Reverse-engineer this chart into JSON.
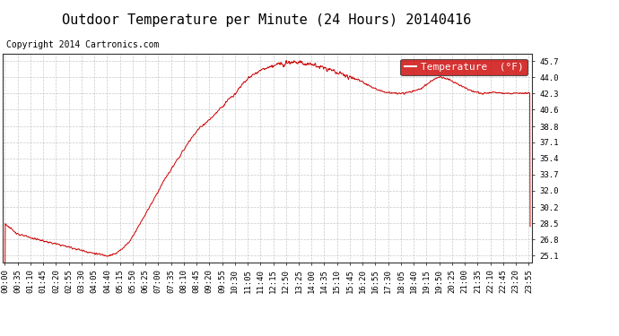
{
  "title": "Outdoor Temperature per Minute (24 Hours) 20140416",
  "copyright": "Copyright 2014 Cartronics.com",
  "legend_label": "Temperature  (°F)",
  "line_color": "#cc0000",
  "legend_bg": "#cc0000",
  "legend_text_color": "#ffffff",
  "background_color": "#ffffff",
  "plot_bg_color": "#ffffff",
  "grid_color": "#bbbbbb",
  "yticks": [
    25.1,
    26.8,
    28.5,
    30.2,
    32.0,
    33.7,
    35.4,
    37.1,
    38.8,
    40.6,
    42.3,
    44.0,
    45.7
  ],
  "ylim": [
    24.4,
    46.5
  ],
  "xtick_labels": [
    "00:00",
    "00:35",
    "01:10",
    "01:45",
    "02:20",
    "02:55",
    "03:30",
    "04:05",
    "04:40",
    "05:15",
    "05:50",
    "06:25",
    "07:00",
    "07:35",
    "08:10",
    "08:45",
    "09:20",
    "09:55",
    "10:30",
    "11:05",
    "11:40",
    "12:15",
    "12:50",
    "13:25",
    "14:00",
    "14:35",
    "15:10",
    "15:45",
    "16:20",
    "16:55",
    "17:30",
    "18:05",
    "18:40",
    "19:15",
    "19:50",
    "20:25",
    "21:00",
    "21:35",
    "22:10",
    "22:45",
    "23:20",
    "23:55"
  ],
  "title_fontsize": 11,
  "copyright_fontsize": 7,
  "tick_fontsize": 6.5,
  "legend_fontsize": 8,
  "waypoints": [
    [
      0,
      28.5
    ],
    [
      20,
      27.8
    ],
    [
      40,
      27.3
    ],
    [
      70,
      27.0
    ],
    [
      90,
      26.8
    ],
    [
      110,
      26.6
    ],
    [
      130,
      26.4
    ],
    [
      155,
      26.2
    ],
    [
      175,
      26.0
    ],
    [
      195,
      25.8
    ],
    [
      215,
      25.6
    ],
    [
      235,
      25.4
    ],
    [
      255,
      25.25
    ],
    [
      270,
      25.15
    ],
    [
      280,
      25.1
    ],
    [
      290,
      25.15
    ],
    [
      305,
      25.3
    ],
    [
      320,
      25.8
    ],
    [
      340,
      26.5
    ],
    [
      360,
      27.8
    ],
    [
      385,
      29.5
    ],
    [
      410,
      31.2
    ],
    [
      435,
      33.0
    ],
    [
      460,
      34.5
    ],
    [
      485,
      36.0
    ],
    [
      510,
      37.5
    ],
    [
      530,
      38.5
    ],
    [
      545,
      39.0
    ],
    [
      560,
      39.5
    ],
    [
      570,
      39.8
    ],
    [
      585,
      40.5
    ],
    [
      600,
      41.0
    ],
    [
      615,
      41.8
    ],
    [
      625,
      42.0
    ],
    [
      635,
      42.5
    ],
    [
      645,
      43.0
    ],
    [
      655,
      43.5
    ],
    [
      665,
      43.8
    ],
    [
      678,
      44.2
    ],
    [
      690,
      44.5
    ],
    [
      700,
      44.7
    ],
    [
      710,
      44.9
    ],
    [
      720,
      45.0
    ],
    [
      730,
      45.1
    ],
    [
      740,
      45.3
    ],
    [
      750,
      45.4
    ],
    [
      760,
      45.5
    ],
    [
      770,
      45.6
    ],
    [
      780,
      45.65
    ],
    [
      790,
      45.7
    ],
    [
      800,
      45.65
    ],
    [
      815,
      45.5
    ],
    [
      830,
      45.4
    ],
    [
      845,
      45.35
    ],
    [
      860,
      45.2
    ],
    [
      875,
      45.0
    ],
    [
      890,
      44.8
    ],
    [
      905,
      44.6
    ],
    [
      920,
      44.4
    ],
    [
      935,
      44.2
    ],
    [
      950,
      44.0
    ],
    [
      965,
      43.8
    ],
    [
      975,
      43.6
    ],
    [
      985,
      43.4
    ],
    [
      995,
      43.2
    ],
    [
      1005,
      43.0
    ],
    [
      1015,
      42.8
    ],
    [
      1025,
      42.6
    ],
    [
      1035,
      42.5
    ],
    [
      1050,
      42.4
    ],
    [
      1065,
      42.3
    ],
    [
      1080,
      42.3
    ],
    [
      1095,
      42.3
    ],
    [
      1105,
      42.4
    ],
    [
      1115,
      42.5
    ],
    [
      1125,
      42.6
    ],
    [
      1140,
      42.8
    ],
    [
      1155,
      43.2
    ],
    [
      1165,
      43.5
    ],
    [
      1175,
      43.8
    ],
    [
      1185,
      44.0
    ],
    [
      1195,
      44.0
    ],
    [
      1205,
      43.9
    ],
    [
      1215,
      43.8
    ],
    [
      1225,
      43.6
    ],
    [
      1235,
      43.4
    ],
    [
      1245,
      43.2
    ],
    [
      1255,
      43.0
    ],
    [
      1265,
      42.8
    ],
    [
      1275,
      42.6
    ],
    [
      1285,
      42.5
    ],
    [
      1295,
      42.4
    ],
    [
      1305,
      42.3
    ],
    [
      1315,
      42.3
    ],
    [
      1325,
      42.3
    ],
    [
      1335,
      42.4
    ],
    [
      1345,
      42.4
    ],
    [
      1355,
      42.4
    ],
    [
      1365,
      42.3
    ],
    [
      1375,
      42.3
    ],
    [
      1385,
      42.3
    ],
    [
      1395,
      42.3
    ],
    [
      1410,
      42.3
    ],
    [
      1425,
      42.3
    ],
    [
      1439,
      42.3
    ]
  ]
}
